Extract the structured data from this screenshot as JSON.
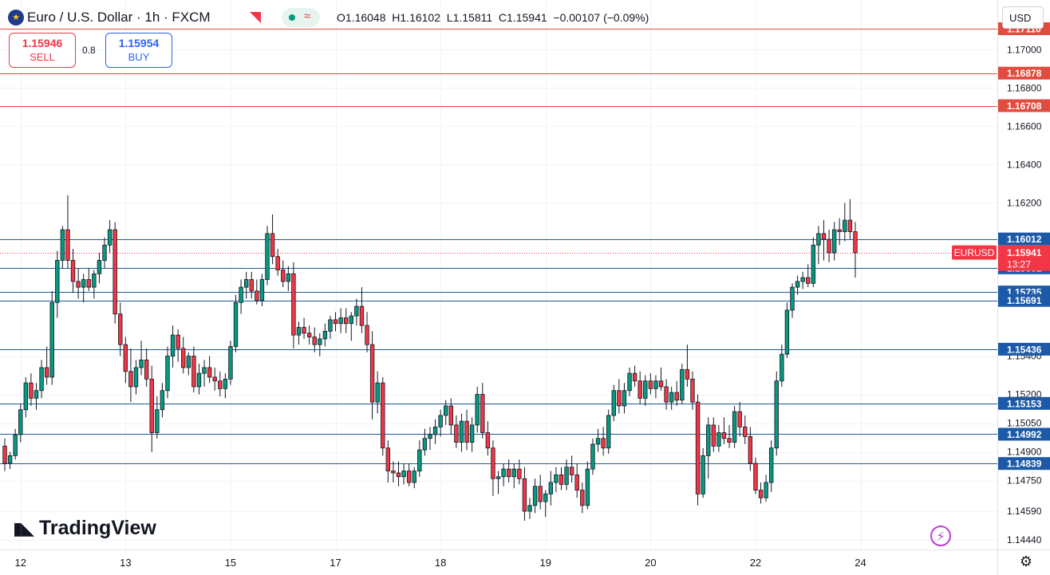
{
  "header": {
    "symbol": "Euro / U.S. Dollar · 1h · FXCM",
    "ohlc_open": "O1.16048",
    "ohlc_high": "H1.16102",
    "ohlc_low": "L1.15811",
    "ohlc_close": "C1.15941",
    "ohlc_change": "−0.00107 (−0.09%)"
  },
  "trade": {
    "sell_price": "1.15946",
    "sell_label": "SELL",
    "buy_price": "1.15954",
    "buy_label": "BUY",
    "spread": "0.8"
  },
  "currency": "USD",
  "brand": "TradingView",
  "icons": {
    "flag": "euro-flag-icon",
    "alert": "flag-corner-icon",
    "live": "wave-icon",
    "bolt": "lightning-icon",
    "settings": "gear-icon"
  },
  "colors": {
    "up": "#089981",
    "down": "#f23645",
    "candle_border": "#131722",
    "resistance": "#e04c3f",
    "level": "#1e5a99",
    "grid": "#f0f3fa"
  },
  "chart_data": {
    "type": "candlestick",
    "symbol": "EURUSD",
    "timeframe": "1h",
    "ylim": [
      1.1439,
      1.1726
    ],
    "y_ticks": [
      {
        "label": "1.17000",
        "value": 1.17
      },
      {
        "label": "1.16800",
        "value": 1.168
      },
      {
        "label": "1.16600",
        "value": 1.166
      },
      {
        "label": "1.16400",
        "value": 1.164
      },
      {
        "label": "1.16200",
        "value": 1.162
      },
      {
        "label": "1.15400",
        "value": 1.154
      },
      {
        "label": "1.15200",
        "value": 1.152
      },
      {
        "label": "1.15050",
        "value": 1.1505
      },
      {
        "label": "1.14900",
        "value": 1.149
      },
      {
        "label": "1.14750",
        "value": 1.1475
      },
      {
        "label": "1.14590",
        "value": 1.1459
      },
      {
        "label": "1.14440",
        "value": 1.1444
      }
    ],
    "x_ticks": [
      {
        "label": "12",
        "index": 3
      },
      {
        "label": "13",
        "index": 23
      },
      {
        "label": "15",
        "index": 43
      },
      {
        "label": "17",
        "index": 63
      },
      {
        "label": "18",
        "index": 83
      },
      {
        "label": "19",
        "index": 103
      },
      {
        "label": "20",
        "index": 123
      },
      {
        "label": "22",
        "index": 143
      },
      {
        "label": "24",
        "index": 163
      }
    ],
    "resistance_levels": [
      "1.17110",
      "1.16878",
      "1.16708"
    ],
    "support_levels": [
      "1.16012",
      "1.15861",
      "1.15735",
      "1.15691",
      "1.15436",
      "1.15153",
      "1.14992",
      "1.14839"
    ],
    "current_price": {
      "label": "EURUSD",
      "price": "1.15941",
      "countdown": "13:27",
      "value": 1.15941
    },
    "ohlc": [
      [
        1.1493,
        1.1497,
        1.148,
        1.1484
      ],
      [
        1.1484,
        1.149,
        1.1481,
        1.1488
      ],
      [
        1.1488,
        1.1502,
        1.1486,
        1.1499
      ],
      [
        1.1499,
        1.1515,
        1.1495,
        1.1512
      ],
      [
        1.1512,
        1.1529,
        1.1508,
        1.1526
      ],
      [
        1.1526,
        1.1531,
        1.1514,
        1.1518
      ],
      [
        1.1518,
        1.1526,
        1.1512,
        1.1522
      ],
      [
        1.1522,
        1.1538,
        1.1518,
        1.1534
      ],
      [
        1.1534,
        1.1545,
        1.1525,
        1.1529
      ],
      [
        1.1529,
        1.1574,
        1.1525,
        1.1568
      ],
      [
        1.1568,
        1.1595,
        1.156,
        1.159
      ],
      [
        1.159,
        1.1608,
        1.1586,
        1.1606
      ],
      [
        1.1606,
        1.1624,
        1.1586,
        1.159
      ],
      [
        1.159,
        1.1596,
        1.1573,
        1.1579
      ],
      [
        1.1579,
        1.1586,
        1.157,
        1.1576
      ],
      [
        1.1576,
        1.1583,
        1.1568,
        1.158
      ],
      [
        1.158,
        1.1586,
        1.1574,
        1.1576
      ],
      [
        1.1576,
        1.1585,
        1.157,
        1.1583
      ],
      [
        1.1583,
        1.1594,
        1.1578,
        1.159
      ],
      [
        1.159,
        1.1602,
        1.1586,
        1.1598
      ],
      [
        1.1598,
        1.1611,
        1.1594,
        1.1606
      ],
      [
        1.1606,
        1.161,
        1.1557,
        1.1562
      ],
      [
        1.1562,
        1.1568,
        1.154,
        1.1546
      ],
      [
        1.1546,
        1.155,
        1.1526,
        1.1532
      ],
      [
        1.1532,
        1.1544,
        1.1516,
        1.1524
      ],
      [
        1.1524,
        1.1538,
        1.152,
        1.1534
      ],
      [
        1.1534,
        1.1548,
        1.153,
        1.1538
      ],
      [
        1.1538,
        1.1544,
        1.1524,
        1.1528
      ],
      [
        1.1528,
        1.1535,
        1.149,
        1.15
      ],
      [
        1.15,
        1.1519,
        1.1497,
        1.1512
      ],
      [
        1.1512,
        1.1526,
        1.1508,
        1.1522
      ],
      [
        1.1522,
        1.1545,
        1.1518,
        1.154
      ],
      [
        1.154,
        1.1556,
        1.1534,
        1.1551
      ],
      [
        1.1551,
        1.1554,
        1.1537,
        1.1544
      ],
      [
        1.1544,
        1.155,
        1.1531,
        1.1534
      ],
      [
        1.1534,
        1.1542,
        1.153,
        1.154
      ],
      [
        1.154,
        1.1545,
        1.1521,
        1.1524
      ],
      [
        1.1524,
        1.1536,
        1.152,
        1.1531
      ],
      [
        1.1531,
        1.1538,
        1.1524,
        1.1534
      ],
      [
        1.1534,
        1.154,
        1.1526,
        1.1529
      ],
      [
        1.1529,
        1.1534,
        1.1522,
        1.1527
      ],
      [
        1.1527,
        1.1532,
        1.1519,
        1.1523
      ],
      [
        1.1523,
        1.1531,
        1.1518,
        1.1528
      ],
      [
        1.1528,
        1.1548,
        1.1525,
        1.1545
      ],
      [
        1.1545,
        1.1572,
        1.1542,
        1.1568
      ],
      [
        1.1568,
        1.158,
        1.1562,
        1.1576
      ],
      [
        1.1576,
        1.1584,
        1.157,
        1.158
      ],
      [
        1.158,
        1.1584,
        1.157,
        1.1574
      ],
      [
        1.1574,
        1.158,
        1.1567,
        1.1569
      ],
      [
        1.1569,
        1.1583,
        1.1566,
        1.158
      ],
      [
        1.158,
        1.1608,
        1.1577,
        1.1604
      ],
      [
        1.1604,
        1.1614,
        1.1588,
        1.1592
      ],
      [
        1.1592,
        1.1596,
        1.1582,
        1.1585
      ],
      [
        1.1585,
        1.159,
        1.1576,
        1.1579
      ],
      [
        1.1579,
        1.1587,
        1.1574,
        1.1583
      ],
      [
        1.1583,
        1.1589,
        1.1544,
        1.1551
      ],
      [
        1.1551,
        1.1558,
        1.1546,
        1.1555
      ],
      [
        1.1555,
        1.156,
        1.1549,
        1.1552
      ],
      [
        1.1552,
        1.1556,
        1.1546,
        1.155
      ],
      [
        1.155,
        1.1555,
        1.1542,
        1.1546
      ],
      [
        1.1546,
        1.1552,
        1.154,
        1.1549
      ],
      [
        1.1549,
        1.1557,
        1.1545,
        1.1553
      ],
      [
        1.1553,
        1.1561,
        1.1549,
        1.1559
      ],
      [
        1.1559,
        1.1563,
        1.1553,
        1.1557
      ],
      [
        1.1557,
        1.1565,
        1.1552,
        1.156
      ],
      [
        1.156,
        1.1565,
        1.1552,
        1.1557
      ],
      [
        1.1557,
        1.1563,
        1.1548,
        1.1561
      ],
      [
        1.1561,
        1.157,
        1.1556,
        1.1566
      ],
      [
        1.1566,
        1.1576,
        1.1552,
        1.1556
      ],
      [
        1.1556,
        1.1563,
        1.1542,
        1.1546
      ],
      [
        1.1546,
        1.1553,
        1.1507,
        1.1516
      ],
      [
        1.1516,
        1.1532,
        1.151,
        1.1526
      ],
      [
        1.1526,
        1.1529,
        1.1488,
        1.1492
      ],
      [
        1.1492,
        1.1496,
        1.1474,
        1.148
      ],
      [
        1.148,
        1.1485,
        1.1474,
        1.1479
      ],
      [
        1.1479,
        1.1485,
        1.1472,
        1.1477
      ],
      [
        1.1477,
        1.1484,
        1.1473,
        1.148
      ],
      [
        1.148,
        1.1484,
        1.1472,
        1.1474
      ],
      [
        1.1474,
        1.1482,
        1.1471,
        1.148
      ],
      [
        1.148,
        1.1496,
        1.1477,
        1.1491
      ],
      [
        1.1491,
        1.1502,
        1.1488,
        1.1497
      ],
      [
        1.1497,
        1.1503,
        1.1491,
        1.1499
      ],
      [
        1.1499,
        1.1507,
        1.1494,
        1.1503
      ],
      [
        1.1503,
        1.1512,
        1.1498,
        1.1509
      ],
      [
        1.1509,
        1.1517,
        1.1504,
        1.1514
      ],
      [
        1.1514,
        1.1518,
        1.1499,
        1.1504
      ],
      [
        1.1504,
        1.1509,
        1.1492,
        1.1495
      ],
      [
        1.1495,
        1.151,
        1.149,
        1.1506
      ],
      [
        1.1506,
        1.1512,
        1.1491,
        1.1495
      ],
      [
        1.1495,
        1.1508,
        1.149,
        1.1504
      ],
      [
        1.1504,
        1.1524,
        1.15,
        1.152
      ],
      [
        1.152,
        1.1526,
        1.1497,
        1.15
      ],
      [
        1.15,
        1.1506,
        1.1488,
        1.1492
      ],
      [
        1.1492,
        1.1496,
        1.1467,
        1.1476
      ],
      [
        1.1476,
        1.148,
        1.1468,
        1.1477
      ],
      [
        1.1477,
        1.1484,
        1.1472,
        1.1481
      ],
      [
        1.1481,
        1.1486,
        1.1474,
        1.1477
      ],
      [
        1.1477,
        1.1484,
        1.1471,
        1.1481
      ],
      [
        1.1481,
        1.1486,
        1.1473,
        1.1476
      ],
      [
        1.1476,
        1.1482,
        1.1454,
        1.1459
      ],
      [
        1.1459,
        1.1466,
        1.1455,
        1.1462
      ],
      [
        1.1462,
        1.1476,
        1.1458,
        1.1472
      ],
      [
        1.1472,
        1.1478,
        1.146,
        1.1464
      ],
      [
        1.1464,
        1.147,
        1.1456,
        1.1468
      ],
      [
        1.1468,
        1.148,
        1.1462,
        1.1474
      ],
      [
        1.1474,
        1.1482,
        1.1469,
        1.1478
      ],
      [
        1.1478,
        1.1482,
        1.147,
        1.1473
      ],
      [
        1.1473,
        1.1486,
        1.147,
        1.1482
      ],
      [
        1.1482,
        1.1488,
        1.1474,
        1.1478
      ],
      [
        1.1478,
        1.1484,
        1.1466,
        1.147
      ],
      [
        1.147,
        1.1474,
        1.1458,
        1.1462
      ],
      [
        1.1462,
        1.1485,
        1.146,
        1.1481
      ],
      [
        1.1481,
        1.1497,
        1.1478,
        1.1494
      ],
      [
        1.1494,
        1.1502,
        1.149,
        1.1497
      ],
      [
        1.1497,
        1.1503,
        1.1488,
        1.1492
      ],
      [
        1.1492,
        1.1512,
        1.1489,
        1.1509
      ],
      [
        1.1509,
        1.1525,
        1.1506,
        1.1522
      ],
      [
        1.1522,
        1.1528,
        1.151,
        1.1514
      ],
      [
        1.1514,
        1.1526,
        1.151,
        1.1522
      ],
      [
        1.1522,
        1.1534,
        1.1519,
        1.1531
      ],
      [
        1.1531,
        1.1535,
        1.1524,
        1.1527
      ],
      [
        1.1527,
        1.1532,
        1.1515,
        1.1518
      ],
      [
        1.1518,
        1.153,
        1.1514,
        1.1527
      ],
      [
        1.1527,
        1.1531,
        1.152,
        1.1523
      ],
      [
        1.1523,
        1.153,
        1.1518,
        1.1527
      ],
      [
        1.1527,
        1.1534,
        1.1522,
        1.1524
      ],
      [
        1.1524,
        1.1528,
        1.1512,
        1.1516
      ],
      [
        1.1516,
        1.1524,
        1.1512,
        1.1521
      ],
      [
        1.1521,
        1.1527,
        1.1514,
        1.1517
      ],
      [
        1.1517,
        1.1536,
        1.1515,
        1.1533
      ],
      [
        1.1533,
        1.1546,
        1.1524,
        1.1528
      ],
      [
        1.1528,
        1.1532,
        1.1512,
        1.1516
      ],
      [
        1.1516,
        1.152,
        1.1462,
        1.1468
      ],
      [
        1.1468,
        1.1492,
        1.1466,
        1.1488
      ],
      [
        1.1488,
        1.1508,
        1.1476,
        1.1504
      ],
      [
        1.1504,
        1.1508,
        1.149,
        1.1493
      ],
      [
        1.1493,
        1.1504,
        1.149,
        1.15
      ],
      [
        1.15,
        1.1508,
        1.1494,
        1.1497
      ],
      [
        1.1497,
        1.1504,
        1.1492,
        1.1495
      ],
      [
        1.1495,
        1.1514,
        1.1492,
        1.1511
      ],
      [
        1.1511,
        1.1516,
        1.1498,
        1.1503
      ],
      [
        1.1503,
        1.1509,
        1.1494,
        1.1498
      ],
      [
        1.1498,
        1.1503,
        1.148,
        1.1484
      ],
      [
        1.1484,
        1.1487,
        1.1468,
        1.147
      ],
      [
        1.147,
        1.1474,
        1.1463,
        1.1466
      ],
      [
        1.1466,
        1.1478,
        1.1464,
        1.1474
      ],
      [
        1.1474,
        1.1496,
        1.1469,
        1.1492
      ],
      [
        1.1492,
        1.1532,
        1.1488,
        1.1527
      ],
      [
        1.1527,
        1.1546,
        1.1524,
        1.1541
      ],
      [
        1.1541,
        1.1568,
        1.1539,
        1.1564
      ],
      [
        1.1564,
        1.1578,
        1.156,
        1.1576
      ],
      [
        1.1576,
        1.1582,
        1.1572,
        1.1579
      ],
      [
        1.1579,
        1.1584,
        1.1575,
        1.1581
      ],
      [
        1.1581,
        1.1588,
        1.1576,
        1.1578
      ],
      [
        1.1578,
        1.1602,
        1.1576,
        1.1598
      ],
      [
        1.1598,
        1.1608,
        1.1588,
        1.1604
      ],
      [
        1.1604,
        1.1611,
        1.159,
        1.1601
      ],
      [
        1.1601,
        1.1606,
        1.1589,
        1.1594
      ],
      [
        1.1594,
        1.161,
        1.159,
        1.1606
      ],
      [
        1.1606,
        1.1612,
        1.1598,
        1.1605
      ],
      [
        1.1605,
        1.162,
        1.16,
        1.1611
      ],
      [
        1.1611,
        1.1622,
        1.1601,
        1.1605
      ],
      [
        1.1605,
        1.161,
        1.1581,
        1.1594
      ]
    ]
  }
}
